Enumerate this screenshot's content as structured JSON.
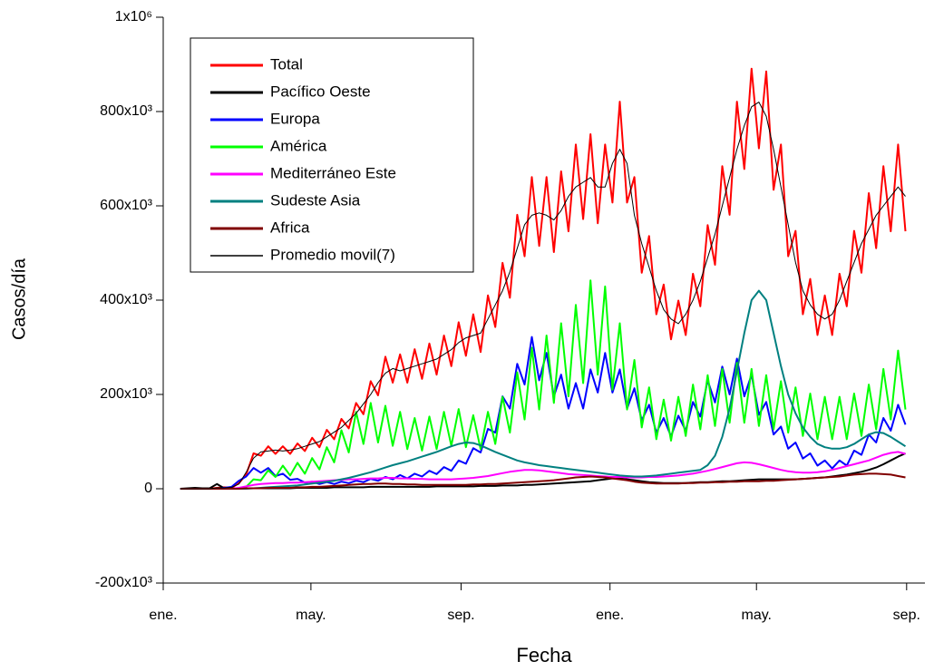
{
  "chart_data": {
    "type": "line",
    "xlabel": "Fecha",
    "ylabel": "Casos/día",
    "xlim": [
      0,
      624
    ],
    "xticks": [
      {
        "value": 0,
        "label": "ene."
      },
      {
        "value": 121,
        "label": "may."
      },
      {
        "value": 244,
        "label": "sep."
      },
      {
        "value": 366,
        "label": "ene."
      },
      {
        "value": 486,
        "label": "may."
      },
      {
        "value": 609,
        "label": "sep."
      }
    ],
    "ylim": [
      -200000,
      1000000
    ],
    "yticks": [
      {
        "value": -200000,
        "label": "-200x10³"
      },
      0,
      {
        "value": 200000,
        "label": "200x10³"
      },
      {
        "value": 400000,
        "label": "400x10³"
      },
      {
        "value": 600000,
        "label": "600x10³"
      },
      {
        "value": 800000,
        "label": "800x10³"
      },
      {
        "value": 1000000,
        "label": "1x10⁶"
      }
    ],
    "legend": "upper left",
    "x": [
      14,
      20,
      26,
      32,
      38,
      44,
      50,
      56,
      62,
      68,
      74,
      80,
      86,
      92,
      98,
      104,
      110,
      116,
      122,
      128,
      134,
      140,
      146,
      152,
      158,
      164,
      170,
      176,
      182,
      188,
      194,
      200,
      206,
      212,
      218,
      224,
      230,
      236,
      242,
      248,
      254,
      260,
      266,
      272,
      278,
      284,
      290,
      296,
      302,
      308,
      314,
      320,
      326,
      332,
      338,
      344,
      350,
      356,
      362,
      368,
      374,
      380,
      386,
      392,
      398,
      404,
      410,
      416,
      422,
      428,
      434,
      440,
      446,
      452,
      458,
      464,
      470,
      476,
      482,
      488,
      494,
      500,
      506,
      512,
      518,
      524,
      530,
      536,
      542,
      548,
      554,
      560,
      566,
      572,
      578,
      584,
      590,
      596,
      602,
      608
    ],
    "series": [
      {
        "name": "Total",
        "color": "#ff0000",
        "values": [
          0,
          0,
          0,
          0,
          0,
          2000,
          3000,
          2000,
          12000,
          30000,
          75000,
          70000,
          90000,
          74000,
          90000,
          74000,
          96000,
          80000,
          108000,
          88000,
          125000,
          105000,
          148000,
          128000,
          182000,
          158000,
          228000,
          198000,
          280000,
          225000,
          285000,
          225000,
          296000,
          233000,
          308000,
          242000,
          325000,
          260000,
          353000,
          282000,
          370000,
          290000,
          410000,
          343000,
          479000,
          405000,
          581000,
          493000,
          661000,
          515000,
          661000,
          502000,
          673000,
          546000,
          730000,
          572000,
          752000,
          563000,
          730000,
          607000,
          821000,
          607000,
          661000,
          458000,
          536000,
          370000,
          433000,
          317000,
          399000,
          326000,
          456000,
          387000,
          559000,
          475000,
          684000,
          581000,
          821000,
          678000,
          891000,
          722000,
          885000,
          634000,
          730000,
          493000,
          547000,
          370000,
          445000,
          326000,
          410000,
          326000,
          456000,
          387000,
          547000,
          458000,
          627000,
          510000,
          684000,
          546000,
          730000,
          546000
        ]
      },
      {
        "name": "Pacífico Oeste",
        "color": "#000000",
        "values": [
          0,
          1000,
          2000,
          1000,
          1000,
          10000,
          1000,
          1000,
          1000,
          1000,
          1000,
          1000,
          1000,
          1000,
          1000,
          1000,
          2000,
          2000,
          2000,
          2000,
          2000,
          3000,
          3000,
          3000,
          3000,
          3000,
          4000,
          4000,
          4000,
          4000,
          4000,
          4000,
          4000,
          4000,
          4000,
          5000,
          5000,
          5000,
          5000,
          5000,
          5000,
          6000,
          6000,
          6000,
          7000,
          7000,
          7000,
          8000,
          8000,
          9000,
          10000,
          11000,
          12000,
          13000,
          14000,
          15000,
          16000,
          18000,
          20000,
          22000,
          22000,
          20000,
          18000,
          16000,
          14000,
          13000,
          12000,
          12000,
          12000,
          12000,
          13000,
          14000,
          14000,
          15000,
          16000,
          16000,
          17000,
          18000,
          19000,
          20000,
          20000,
          20000,
          20000,
          20000,
          20000,
          21000,
          22000,
          23000,
          24000,
          26000,
          28000,
          30000,
          33000,
          36000,
          40000,
          45000,
          52000,
          60000,
          68000,
          75000
        ]
      },
      {
        "name": "Europa",
        "color": "#0000ff",
        "values": [
          0,
          0,
          0,
          0,
          0,
          0,
          2000,
          4000,
          17000,
          26000,
          44000,
          34000,
          44000,
          27000,
          32000,
          19000,
          21000,
          13000,
          15000,
          10000,
          14000,
          10000,
          15000,
          12000,
          17000,
          14000,
          21000,
          17000,
          25000,
          20000,
          29000,
          22000,
          32000,
          26000,
          38000,
          31000,
          46000,
          38000,
          60000,
          53000,
          86000,
          77000,
          127000,
          119000,
          196000,
          170000,
          265000,
          221000,
          322000,
          230000,
          288000,
          196000,
          242000,
          170000,
          224000,
          170000,
          253000,
          204000,
          288000,
          204000,
          253000,
          170000,
          213000,
          145000,
          178000,
          119000,
          150000,
          111000,
          155000,
          123000,
          184000,
          153000,
          230000,
          183000,
          259000,
          200000,
          276000,
          196000,
          242000,
          157000,
          184000,
          115000,
          132000,
          85000,
          98000,
          64000,
          75000,
          49000,
          60000,
          43000,
          60000,
          49000,
          81000,
          72000,
          115000,
          98000,
          150000,
          123000,
          178000,
          136000
        ]
      },
      {
        "name": "América",
        "color": "#00ff00",
        "values": [
          0,
          0,
          0,
          0,
          0,
          0,
          0,
          0,
          0,
          4000,
          20000,
          18000,
          39000,
          25000,
          49000,
          28000,
          55000,
          32000,
          65000,
          41000,
          88000,
          56000,
          124000,
          77000,
          163000,
          95000,
          182000,
          98000,
          176000,
          91000,
          163000,
          84000,
          150000,
          81000,
          153000,
          84000,
          163000,
          91000,
          169000,
          88000,
          156000,
          84000,
          163000,
          95000,
          195000,
          119000,
          247000,
          147000,
          299000,
          168000,
          325000,
          182000,
          351000,
          196000,
          390000,
          224000,
          442000,
          242000,
          429000,
          210000,
          351000,
          168000,
          273000,
          130000,
          215000,
          105000,
          189000,
          102000,
          195000,
          112000,
          221000,
          126000,
          241000,
          133000,
          254000,
          140000,
          267000,
          140000,
          254000,
          133000,
          241000,
          126000,
          228000,
          119000,
          215000,
          112000,
          202000,
          105000,
          195000,
          105000,
          195000,
          105000,
          202000,
          112000,
          221000,
          126000,
          254000,
          147000,
          293000,
          168000
        ]
      },
      {
        "name": "Mediterráneo Este",
        "color": "#ff00ff",
        "values": [
          0,
          0,
          0,
          0,
          0,
          0,
          0,
          0,
          2000,
          5000,
          8000,
          10000,
          11000,
          12000,
          12000,
          13000,
          13000,
          14000,
          15000,
          16000,
          17000,
          18000,
          19000,
          20000,
          20000,
          21000,
          22000,
          22000,
          23000,
          23000,
          22000,
          22000,
          21000,
          21000,
          20000,
          20000,
          20000,
          20000,
          21000,
          22000,
          23000,
          25000,
          27000,
          30000,
          33000,
          36000,
          38000,
          40000,
          40000,
          39000,
          37000,
          35000,
          33000,
          31000,
          30000,
          29000,
          28000,
          27000,
          26000,
          25000,
          25000,
          24000,
          24000,
          24000,
          25000,
          25000,
          26000,
          27000,
          28000,
          30000,
          32000,
          35000,
          38000,
          42000,
          46000,
          50000,
          54000,
          56000,
          55000,
          52000,
          48000,
          44000,
          40000,
          37000,
          35000,
          34000,
          34000,
          35000,
          37000,
          40000,
          44000,
          48000,
          52000,
          56000,
          60000,
          66000,
          72000,
          76000,
          78000,
          74000
        ]
      },
      {
        "name": "Sudeste Asia",
        "color": "#008080",
        "values": [
          0,
          0,
          0,
          0,
          0,
          0,
          0,
          0,
          0,
          0,
          1000,
          2000,
          3000,
          4000,
          5000,
          6000,
          7000,
          9000,
          11000,
          13000,
          15000,
          17000,
          20000,
          23000,
          27000,
          31000,
          35000,
          40000,
          45000,
          50000,
          54000,
          58000,
          63000,
          68000,
          73000,
          78000,
          84000,
          90000,
          95000,
          98000,
          97000,
          92000,
          85000,
          78000,
          72000,
          66000,
          60000,
          56000,
          53000,
          50000,
          48000,
          46000,
          44000,
          42000,
          40000,
          38000,
          36000,
          34000,
          32000,
          30000,
          28000,
          27000,
          26000,
          26000,
          27000,
          28000,
          30000,
          32000,
          34000,
          36000,
          38000,
          40000,
          50000,
          70000,
          110000,
          170000,
          250000,
          330000,
          400000,
          420000,
          400000,
          330000,
          260000,
          200000,
          160000,
          130000,
          110000,
          95000,
          88000,
          85000,
          85000,
          88000,
          95000,
          105000,
          115000,
          120000,
          118000,
          110000,
          100000,
          90000
        ]
      },
      {
        "name": "Africa",
        "color": "#800000",
        "values": [
          0,
          0,
          0,
          0,
          0,
          0,
          0,
          0,
          0,
          1000,
          1000,
          1000,
          2000,
          2000,
          2000,
          2000,
          3000,
          3000,
          4000,
          4000,
          5000,
          6000,
          7000,
          8000,
          9000,
          10000,
          10000,
          11000,
          11000,
          10000,
          10000,
          9000,
          9000,
          8000,
          8000,
          8000,
          8000,
          8000,
          8000,
          8000,
          9000,
          9000,
          10000,
          10000,
          11000,
          12000,
          13000,
          14000,
          15000,
          16000,
          17000,
          18000,
          20000,
          22000,
          24000,
          25000,
          26000,
          25000,
          24000,
          22000,
          20000,
          18000,
          15000,
          13000,
          12000,
          11000,
          11000,
          11000,
          11000,
          12000,
          12000,
          13000,
          13000,
          14000,
          14000,
          15000,
          15000,
          16000,
          16000,
          16000,
          17000,
          17000,
          18000,
          19000,
          20000,
          21000,
          22000,
          23000,
          24000,
          25000,
          26000,
          28000,
          30000,
          31000,
          32000,
          32000,
          31000,
          30000,
          27000,
          24000
        ]
      },
      {
        "name": "Promedio movil(7)",
        "color": "#000000",
        "values": [
          0,
          0,
          0,
          0,
          0,
          2000,
          2000,
          3000,
          10000,
          35000,
          65000,
          78000,
          80000,
          82000,
          80000,
          82000,
          85000,
          90000,
          95000,
          100000,
          110000,
          120000,
          130000,
          145000,
          160000,
          180000,
          200000,
          225000,
          245000,
          255000,
          250000,
          255000,
          260000,
          265000,
          270000,
          275000,
          285000,
          295000,
          310000,
          320000,
          325000,
          330000,
          360000,
          390000,
          420000,
          460000,
          510000,
          560000,
          580000,
          585000,
          580000,
          570000,
          590000,
          620000,
          640000,
          650000,
          660000,
          640000,
          640000,
          690000,
          720000,
          690000,
          580000,
          520000,
          470000,
          420000,
          380000,
          360000,
          350000,
          370000,
          400000,
          440000,
          490000,
          540000,
          600000,
          660000,
          720000,
          770000,
          810000,
          820000,
          790000,
          720000,
          640000,
          560000,
          480000,
          420000,
          390000,
          370000,
          360000,
          370000,
          400000,
          440000,
          480000,
          520000,
          550000,
          580000,
          600000,
          620000,
          640000,
          620000
        ]
      }
    ]
  }
}
